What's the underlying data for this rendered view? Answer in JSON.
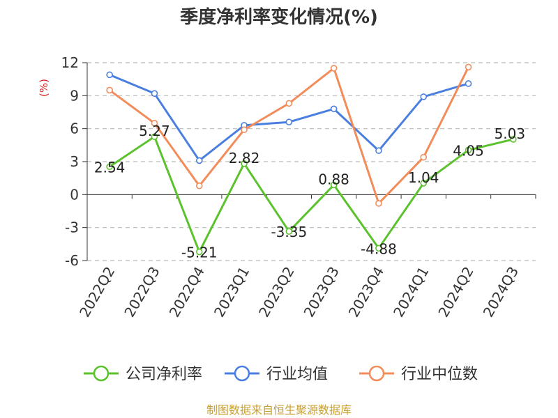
{
  "chart_data": {
    "type": "line",
    "title": "季度净利率变化情况(%)",
    "ylabel": "(%)",
    "xlabel": "",
    "ylim": [
      -6,
      12
    ],
    "yticks": [
      12,
      9,
      6,
      3,
      0,
      -3,
      -6
    ],
    "grid": true,
    "legend_position": "bottom",
    "categories": [
      "2022Q2",
      "2022Q3",
      "2022Q4",
      "2023Q1",
      "2023Q2",
      "2023Q3",
      "2023Q4",
      "2024Q1",
      "2024Q2",
      "2024Q3"
    ],
    "series": [
      {
        "name": "公司净利率",
        "color": "#5bc22d",
        "values": [
          2.54,
          5.27,
          -5.21,
          2.82,
          -3.35,
          0.88,
          -4.88,
          1.04,
          4.05,
          5.03
        ],
        "labels": [
          "2.54",
          "5.27",
          "-5.21",
          "2.82",
          "-3.35",
          "0.88",
          "-4.88",
          "1.04",
          "4.05",
          "5.03"
        ]
      },
      {
        "name": "行业均值",
        "color": "#4a7fe0",
        "values": [
          10.9,
          9.2,
          3.1,
          6.3,
          6.6,
          7.8,
          4.0,
          8.9,
          10.1,
          null
        ]
      },
      {
        "name": "行业中位数",
        "color": "#f28c5a",
        "values": [
          9.5,
          6.5,
          0.8,
          5.9,
          8.3,
          11.5,
          -0.8,
          3.4,
          11.6,
          null
        ]
      }
    ],
    "source": "制图数据来自恒生聚源数据库"
  }
}
